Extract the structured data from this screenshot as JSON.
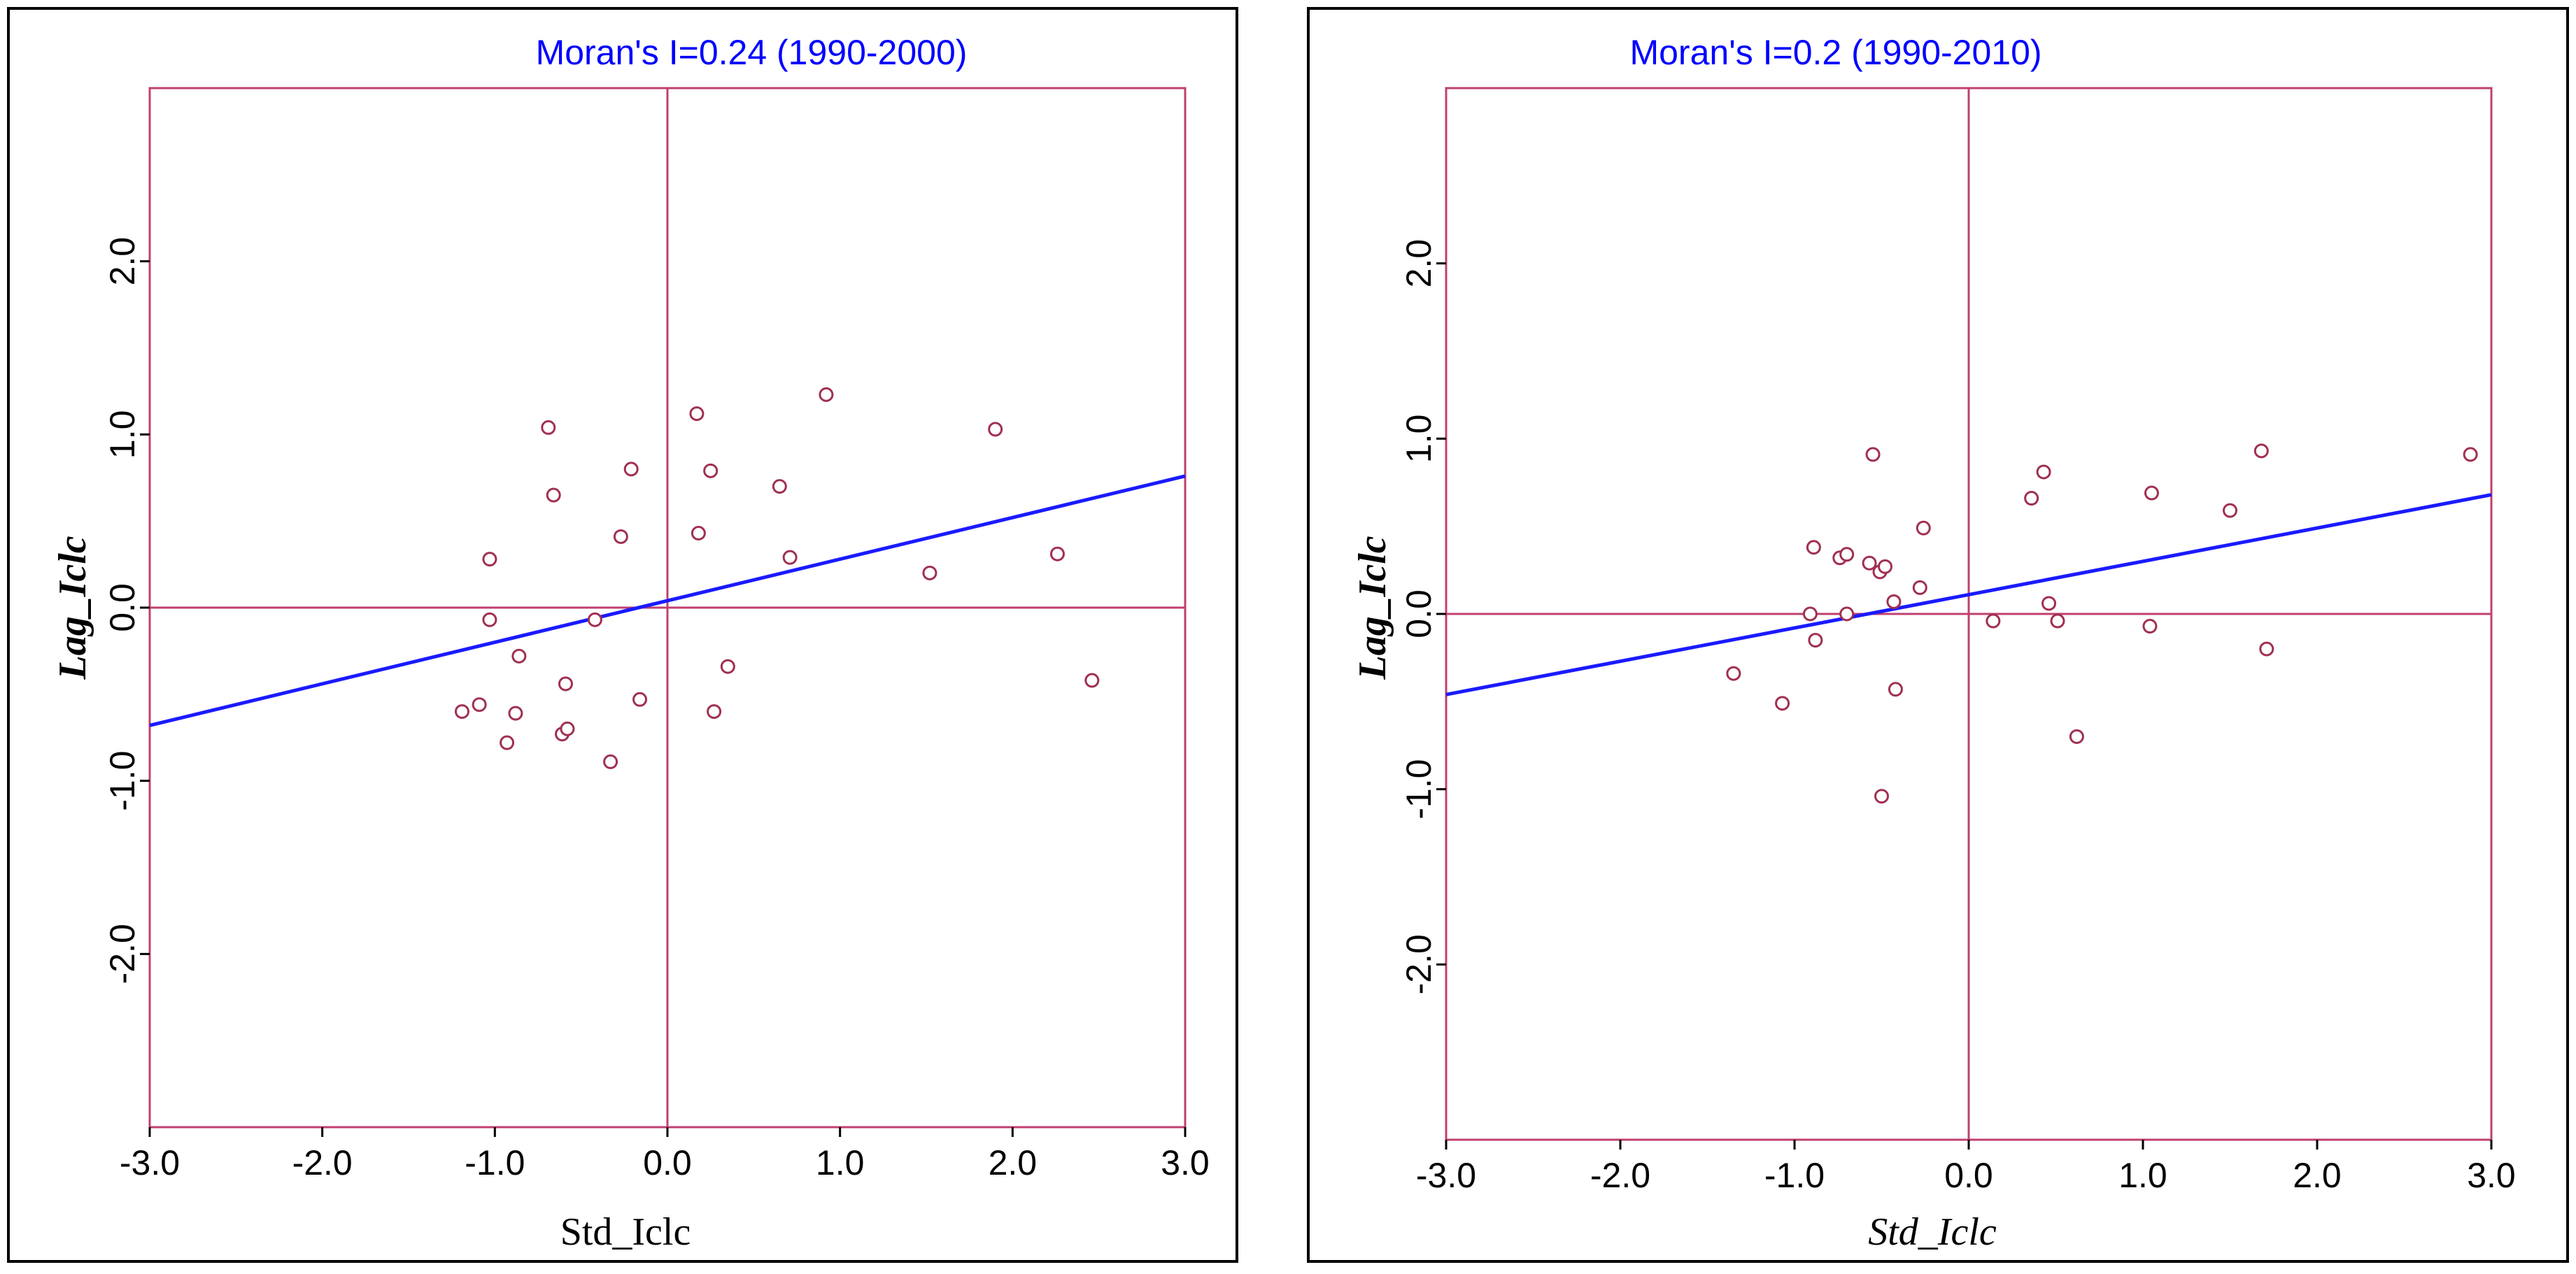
{
  "chart_data": [
    {
      "type": "scatter",
      "title": "Moran's I=0.24 (1990-2000)",
      "xlabel": "Std_Iclc",
      "ylabel": "Lag_Iclc",
      "xlim": [
        -3.0,
        3.0
      ],
      "ylim": [
        -3.0,
        3.0
      ],
      "xticks": [
        "-3.0",
        "-2.0",
        "-1.0",
        "0.0",
        "1.0",
        "2.0",
        "3.0"
      ],
      "yticks": [
        "-2.0",
        "-1.0",
        "0.0",
        "1.0",
        "2.0"
      ],
      "regression": {
        "slope": 0.24,
        "intercept": 0.04
      },
      "points": [
        {
          "x": -1.19,
          "y": -0.6
        },
        {
          "x": -1.09,
          "y": -0.56
        },
        {
          "x": -1.03,
          "y": 0.28
        },
        {
          "x": -1.03,
          "y": -0.07
        },
        {
          "x": -0.93,
          "y": -0.78
        },
        {
          "x": -0.88,
          "y": -0.61
        },
        {
          "x": -0.86,
          "y": -0.28
        },
        {
          "x": -0.69,
          "y": 1.04
        },
        {
          "x": -0.66,
          "y": 0.65
        },
        {
          "x": -0.61,
          "y": -0.73
        },
        {
          "x": -0.59,
          "y": -0.44
        },
        {
          "x": -0.58,
          "y": -0.7
        },
        {
          "x": -0.42,
          "y": -0.07
        },
        {
          "x": -0.33,
          "y": -0.89
        },
        {
          "x": -0.27,
          "y": 0.41
        },
        {
          "x": -0.21,
          "y": 0.8
        },
        {
          "x": -0.16,
          "y": -0.53
        },
        {
          "x": 0.17,
          "y": 1.12
        },
        {
          "x": 0.18,
          "y": 0.43
        },
        {
          "x": 0.25,
          "y": 0.79
        },
        {
          "x": 0.27,
          "y": -0.6
        },
        {
          "x": 0.35,
          "y": -0.34
        },
        {
          "x": 0.65,
          "y": 0.7
        },
        {
          "x": 0.71,
          "y": 0.29
        },
        {
          "x": 0.92,
          "y": 1.23
        },
        {
          "x": 1.52,
          "y": 0.2
        },
        {
          "x": 1.9,
          "y": 1.03
        },
        {
          "x": 2.26,
          "y": 0.31
        },
        {
          "x": 2.46,
          "y": -0.42
        }
      ]
    },
    {
      "type": "scatter",
      "title": "Moran's I=0.2 (1990-2010)",
      "xlabel": "Std_Iclc",
      "ylabel": "Lag_Iclc",
      "xlim": [
        -3.0,
        3.0
      ],
      "ylim": [
        -3.0,
        3.0
      ],
      "xticks": [
        "-3.0",
        "-2.0",
        "-1.0",
        "0.0",
        "1.0",
        "2.0",
        "3.0"
      ],
      "yticks": [
        "-2.0",
        "-1.0",
        "0.0",
        "1.0",
        "2.0"
      ],
      "regression": {
        "slope": 0.19,
        "intercept": 0.11
      },
      "points": [
        {
          "x": -1.35,
          "y": -0.34
        },
        {
          "x": -1.07,
          "y": -0.51
        },
        {
          "x": -0.91,
          "y": 0.0
        },
        {
          "x": -0.89,
          "y": 0.38
        },
        {
          "x": -0.88,
          "y": -0.15
        },
        {
          "x": -0.74,
          "y": 0.32
        },
        {
          "x": -0.7,
          "y": 0.34
        },
        {
          "x": -0.7,
          "y": 0.0
        },
        {
          "x": -0.57,
          "y": 0.29
        },
        {
          "x": -0.55,
          "y": 0.91
        },
        {
          "x": -0.51,
          "y": 0.24
        },
        {
          "x": -0.5,
          "y": -1.04
        },
        {
          "x": -0.48,
          "y": 0.27
        },
        {
          "x": -0.43,
          "y": 0.07
        },
        {
          "x": -0.42,
          "y": -0.43
        },
        {
          "x": -0.28,
          "y": 0.15
        },
        {
          "x": -0.26,
          "y": 0.49
        },
        {
          "x": 0.14,
          "y": -0.04
        },
        {
          "x": 0.36,
          "y": 0.66
        },
        {
          "x": 0.43,
          "y": 0.81
        },
        {
          "x": 0.46,
          "y": 0.06
        },
        {
          "x": 0.51,
          "y": -0.04
        },
        {
          "x": 0.62,
          "y": -0.7
        },
        {
          "x": 1.04,
          "y": -0.07
        },
        {
          "x": 1.05,
          "y": 0.69
        },
        {
          "x": 1.5,
          "y": 0.59
        },
        {
          "x": 1.68,
          "y": 0.93
        },
        {
          "x": 1.71,
          "y": -0.2
        },
        {
          "x": 2.88,
          "y": 0.91
        }
      ]
    }
  ]
}
